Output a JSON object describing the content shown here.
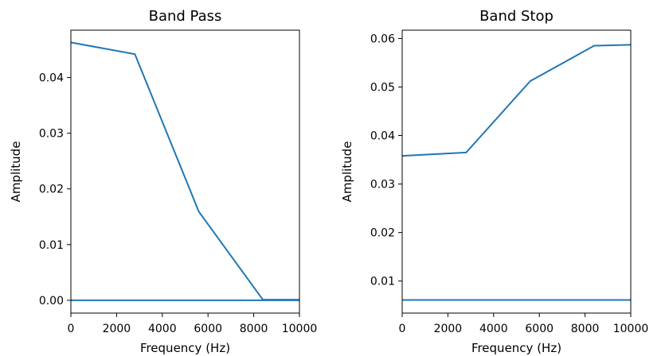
{
  "colors": {
    "line": "#1f77b4",
    "axes": "#000000",
    "background": "#ffffff"
  },
  "chart_data": [
    {
      "type": "line",
      "title": "Band Pass",
      "xlabel": "Frequency (Hz)",
      "ylabel": "Amplitude",
      "xlim": [
        0,
        10000
      ],
      "ylim": [
        -0.0023,
        0.0485
      ],
      "xticks": [
        0,
        2000,
        4000,
        6000,
        8000,
        10000
      ],
      "xtick_labels": [
        "0",
        "2000",
        "4000",
        "6000",
        "8000",
        "10000"
      ],
      "yticks": [
        0,
        0.01,
        0.02,
        0.03,
        0.04
      ],
      "ytick_labels": [
        "0.00",
        "0.01",
        "0.02",
        "0.03",
        "0.04"
      ],
      "grid": false,
      "series": [
        {
          "x": [
            0,
            2800,
            5600,
            8400,
            10000
          ],
          "y": [
            0.0463,
            0.0442,
            0.0159,
            0.0001,
            0.0001
          ]
        },
        {
          "x": [
            0,
            10000
          ],
          "y": [
            0.0,
            0.0
          ]
        }
      ]
    },
    {
      "type": "line",
      "title": "Band Stop",
      "xlabel": "Frequency (Hz)",
      "ylabel": "Amplitude",
      "xlim": [
        0,
        10000
      ],
      "ylim": [
        0.0034,
        0.0617
      ],
      "xticks": [
        0,
        2000,
        4000,
        6000,
        8000,
        10000
      ],
      "xtick_labels": [
        "0",
        "2000",
        "4000",
        "6000",
        "8000",
        "10000"
      ],
      "yticks": [
        0.01,
        0.02,
        0.03,
        0.04,
        0.05,
        0.06
      ],
      "ytick_labels": [
        "0.01",
        "0.02",
        "0.03",
        "0.04",
        "0.05",
        "0.06"
      ],
      "grid": false,
      "series": [
        {
          "x": [
            0,
            2800,
            5600,
            8400,
            10000
          ],
          "y": [
            0.0358,
            0.0365,
            0.0512,
            0.0585,
            0.0587
          ]
        },
        {
          "x": [
            0,
            10000
          ],
          "y": [
            0.0061,
            0.0061
          ]
        }
      ]
    }
  ]
}
